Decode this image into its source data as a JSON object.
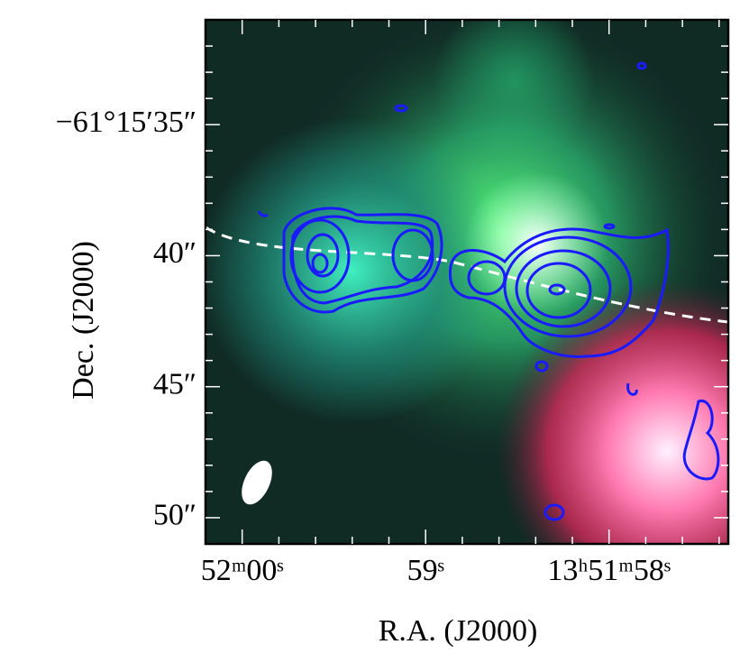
{
  "chart_data": {
    "type": "image",
    "xlabel": "R.A. (J2000)",
    "ylabel": "Dec. (J2000)",
    "xlim": [
      60.2,
      57.35
    ],
    "ylim": [
      51,
      31
    ],
    "xticks": [
      {
        "value": 60,
        "label": "52ᵐ00ˢ"
      },
      {
        "value": 59,
        "label": "59ˢ"
      },
      {
        "value": 58,
        "label": "13ʰ51ᵐ58ˢ"
      }
    ],
    "yticks": [
      {
        "value": 35,
        "label": "−61°15′35″"
      },
      {
        "value": 40,
        "label": "40″"
      },
      {
        "value": 45,
        "label": "45″"
      },
      {
        "value": 50,
        "label": "50″"
      }
    ],
    "xminorticks": [
      59.8,
      59.6,
      59.4,
      59.2,
      58.8,
      58.6,
      58.4,
      58.2,
      57.8,
      57.6,
      57.4
    ],
    "yminorticks": [
      32,
      33,
      34,
      36,
      37,
      38,
      39,
      41,
      42,
      43,
      44,
      46,
      47,
      48,
      49
    ]
  }
}
